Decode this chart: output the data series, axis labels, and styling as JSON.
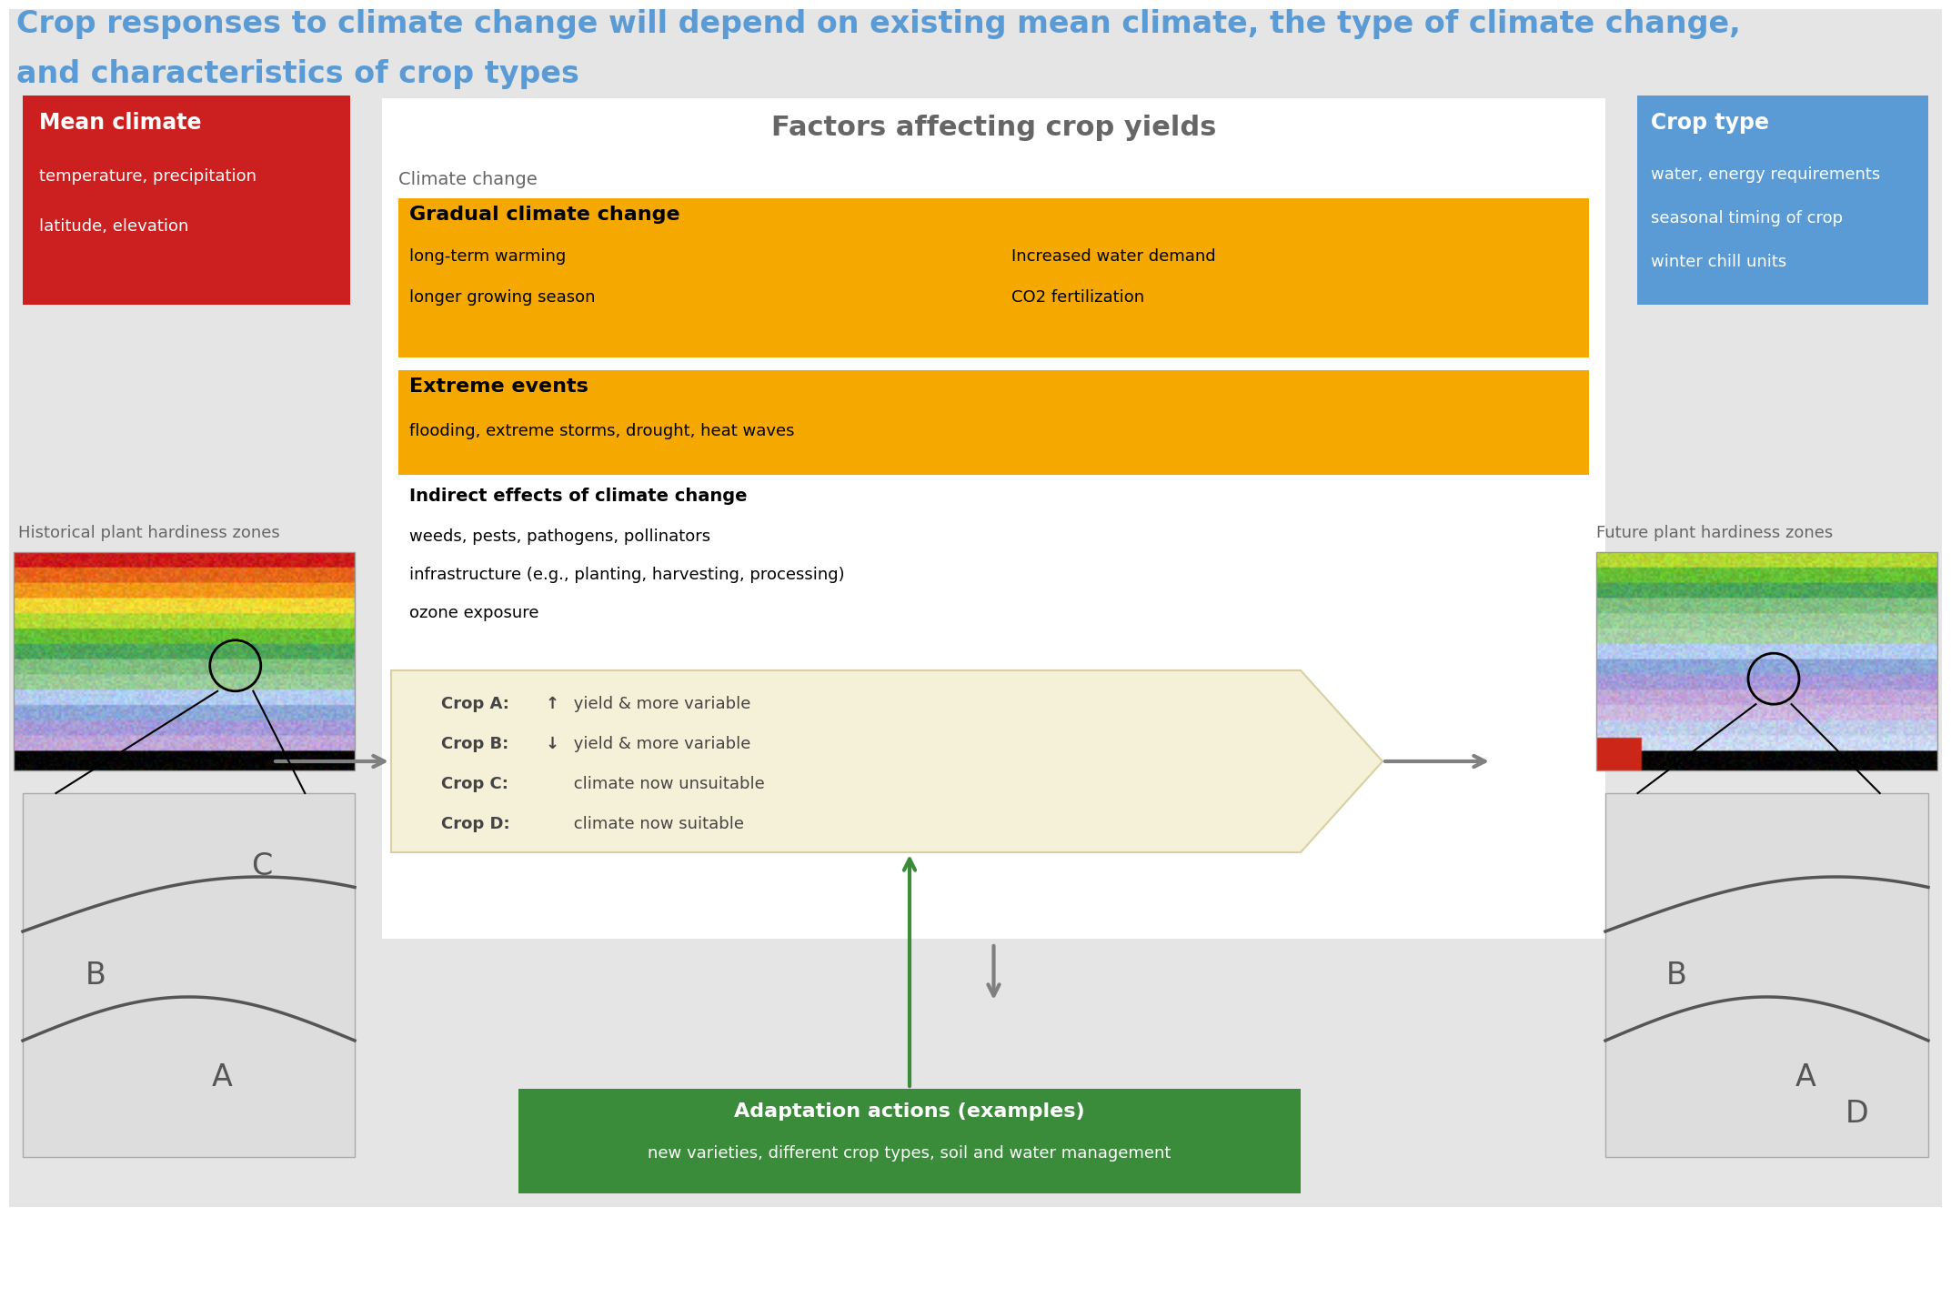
{
  "title_line1": "Crop responses to climate change will depend on existing mean climate, the type of climate change,",
  "title_line2": "and characteristics of crop types",
  "title_color": "#5B9BD5",
  "bg_color": "#E5E5E5",
  "white": "#FFFFFF",
  "factors_title": "Factors affecting crop yields",
  "factors_title_color": "#666666",
  "climate_change_label": "Climate change",
  "gradual_title": "Gradual climate change",
  "gradual_color": "#F5A800",
  "gradual_items_left": [
    "long-term warming",
    "longer growing season"
  ],
  "gradual_items_right": [
    "Increased water demand",
    "CO2 fertilization"
  ],
  "extreme_title": "Extreme events",
  "extreme_color": "#F5A800",
  "extreme_text": "flooding, extreme storms, drought, heat waves",
  "indirect_title": "Indirect effects of climate change",
  "indirect_items": [
    "weeds, pests, pathogens, pollinators",
    "infrastructure (e.g., planting, harvesting, processing)",
    "ozone exposure"
  ],
  "mean_climate_title": "Mean climate",
  "mean_climate_color": "#CC2020",
  "mean_climate_items": [
    "temperature, precipitation",
    "latitude, elevation"
  ],
  "crop_type_title": "Crop type",
  "crop_type_color": "#5B9BD5",
  "crop_type_items": [
    "water, energy requirements",
    "seasonal timing of crop",
    "winter chill units"
  ],
  "hist_label": "Historical plant hardiness zones",
  "future_label": "Future plant hardiness zones",
  "crop_results": [
    {
      "label": "Crop A:",
      "arrow": "↑",
      "text": " yield & more variable"
    },
    {
      "label": "Crop B:",
      "arrow": "↓",
      "text": " yield & more variable"
    },
    {
      "label": "Crop C:",
      "arrow": "",
      "text": " climate now unsuitable"
    },
    {
      "label": "Crop D:",
      "arrow": "",
      "text": " climate now suitable"
    }
  ],
  "adaptation_title": "Adaptation actions (examples)",
  "adaptation_color": "#3A8C3A",
  "adaptation_text": "new varieties, different crop types, soil and water management",
  "arrow_color": "#808080",
  "chevron_color": "#F5F0D8",
  "chevron_edge": "#D8D0A0",
  "zone_bg": "#DDDDDD",
  "zone_line_color": "#555555"
}
